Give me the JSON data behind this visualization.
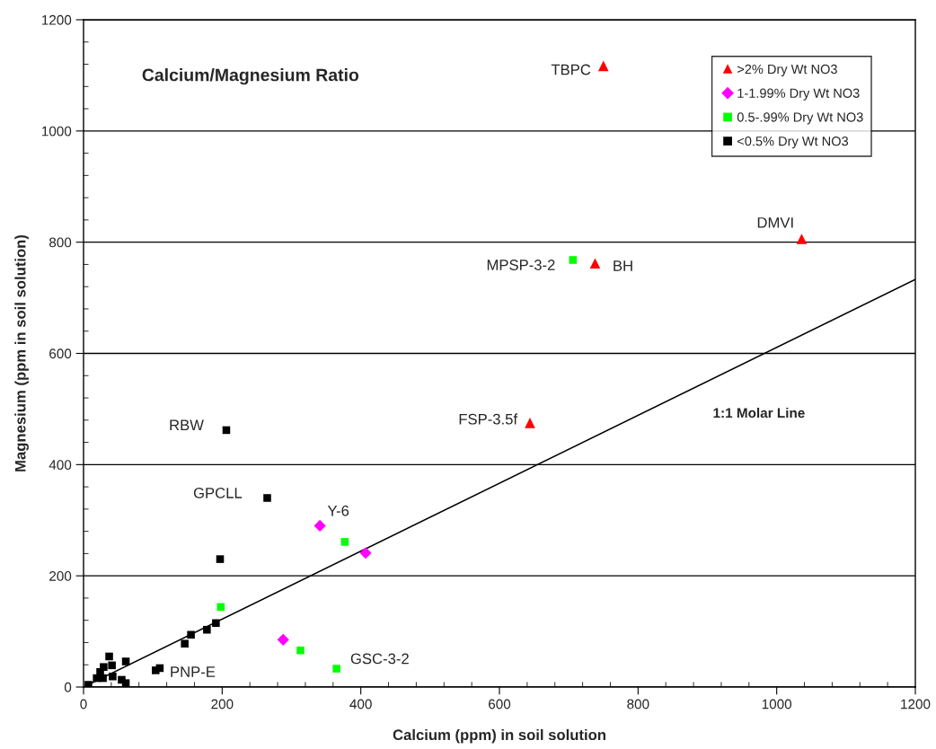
{
  "chart_data": {
    "type": "scatter",
    "title": "Calcium/Magnesium Ratio",
    "xlabel": "Calcium (ppm) in soil solution",
    "ylabel": "Magnesium (ppm in soil solution)",
    "xlim": [
      0,
      1200
    ],
    "xticks": [
      0,
      200,
      400,
      600,
      800,
      1000,
      1200
    ],
    "ylim": [
      0,
      1200
    ],
    "yticks": [
      0,
      200,
      400,
      600,
      800,
      1000,
      1200
    ],
    "grid": "y",
    "legend": "top right",
    "series": [
      {
        "name": ">2% Dry Wt NO3",
        "color": "#ff0000",
        "marker": "triangle",
        "x": [
          750,
          1036,
          738,
          644
        ],
        "values": [
          1117,
          806,
          762,
          475
        ]
      },
      {
        "name": "1-1.99% Dry Wt NO3",
        "color": "#ff00ff",
        "marker": "diamond",
        "x": [
          341,
          407,
          288
        ],
        "values": [
          290,
          241,
          85
        ]
      },
      {
        "name": "0.5-.99% Dry Wt NO3",
        "color": "#00ff00",
        "marker": "square",
        "x": [
          706,
          377,
          198,
          313,
          365
        ],
        "values": [
          768,
          261,
          144,
          66,
          33
        ]
      },
      {
        "name": "<0.5% Dry Wt NO3",
        "color": "#000000",
        "marker": "square",
        "x": [
          7,
          19,
          28,
          24,
          29,
          37,
          41,
          42,
          55,
          61,
          61,
          104,
          110,
          146,
          155,
          178,
          191,
          206,
          265,
          197
        ],
        "values": [
          4,
          16,
          16,
          27,
          36,
          55,
          39,
          19,
          13,
          7,
          46,
          30,
          34,
          78,
          94,
          103,
          115,
          462,
          340,
          230
        ]
      },
      {
        "type": "line",
        "color": "#000000",
        "marker": "none",
        "x": [
          0,
          1200
        ],
        "values": [
          0,
          733
        ]
      }
    ],
    "annotations": [
      {
        "text": "TBPC",
        "x": 750,
        "y": 1117
      },
      {
        "text": "DMVI",
        "x": 1036,
        "y": 806
      },
      {
        "text": "MPSP-3-2",
        "x": 706,
        "y": 768
      },
      {
        "text": "BH",
        "x": 738,
        "y": 762
      },
      {
        "text": "FSP-3.5f",
        "x": 644,
        "y": 475
      },
      {
        "text": "RBW",
        "x": 206,
        "y": 462
      },
      {
        "text": "GPCLL",
        "x": 265,
        "y": 340
      },
      {
        "text": "Y-6",
        "x": 341,
        "y": 290
      },
      {
        "text": "GSC-3-2",
        "x": 365,
        "y": 33
      },
      {
        "text": "PNP-E",
        "x": 110,
        "y": 34
      },
      "1:1 Molar Line"
    ]
  }
}
